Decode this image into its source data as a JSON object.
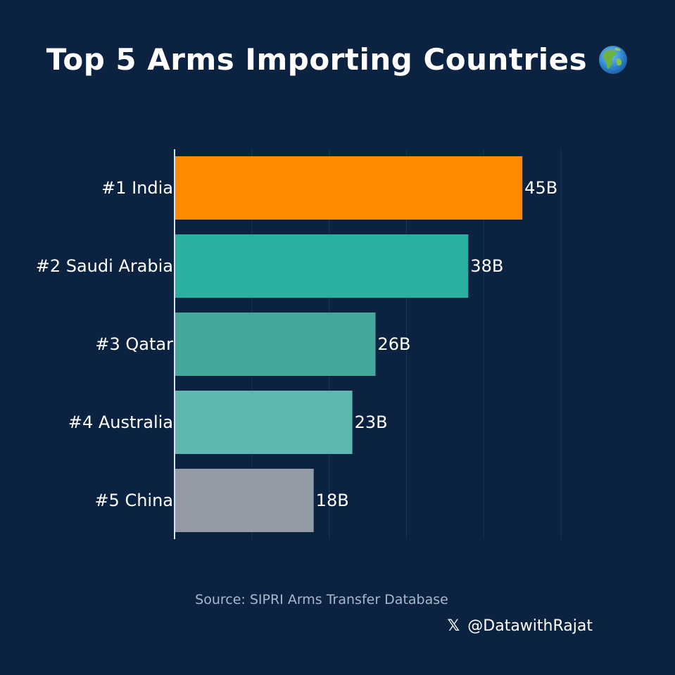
{
  "title": "Top 5 Arms Importing Countries",
  "title_icon": "globe-emoji",
  "source": "Source: SIPRI Arms Transfer Database",
  "handle": {
    "icon": "x-logo-icon",
    "icon_glyph": "𝕏",
    "text": "@DatawithRajat"
  },
  "colors": {
    "background": "#0b2240",
    "bars": [
      "#ff8a00",
      "#2bafa0",
      "#45a69c",
      "#5fb8b0",
      "#939ca6"
    ],
    "gridline": "#1c3456",
    "axis": "#d9e1ea"
  },
  "chart_data": {
    "type": "bar",
    "orientation": "horizontal",
    "categories": [
      "#1 India",
      "#2 Saudi Arabia",
      "#3 Qatar",
      "#4 Australia",
      "#5 China"
    ],
    "values": [
      45,
      38,
      26,
      23,
      18
    ],
    "value_labels": [
      "45B",
      "38B",
      "26B",
      "23B",
      "18B"
    ],
    "xlim": [
      0,
      55
    ],
    "grid": true,
    "title": "Top 5 Arms Importing Countries",
    "xlabel": "",
    "ylabel": ""
  }
}
